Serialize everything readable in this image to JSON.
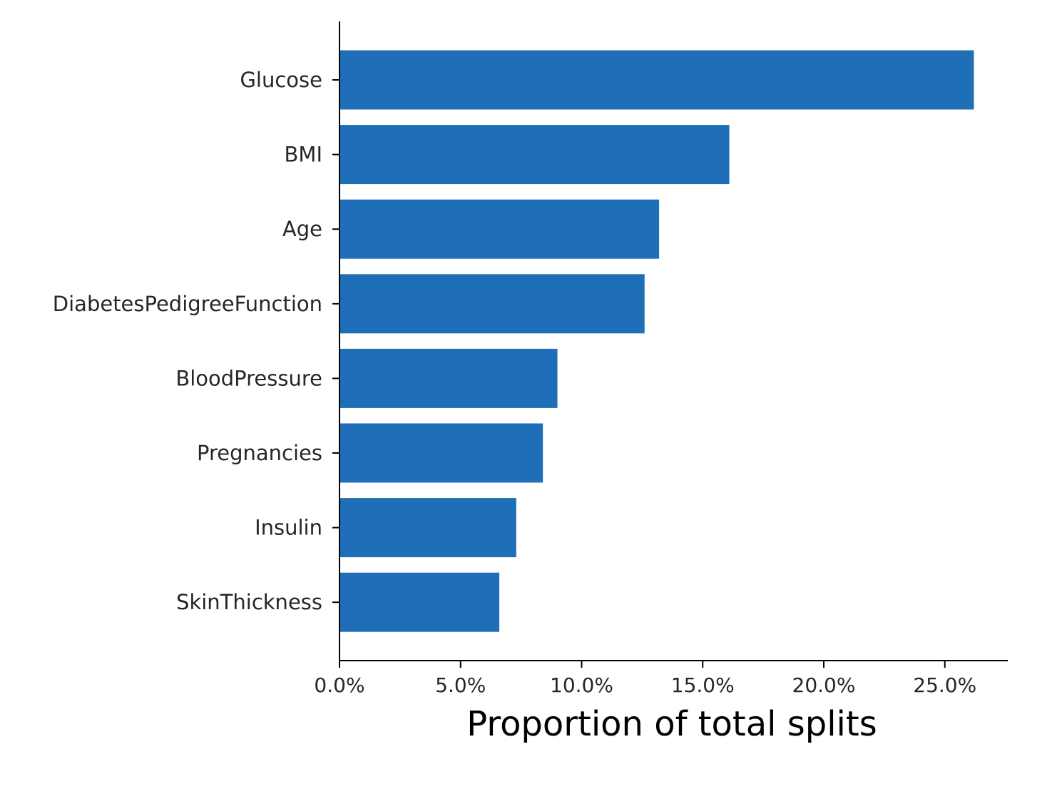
{
  "chart_data": {
    "type": "bar",
    "orientation": "horizontal",
    "categories": [
      "Glucose",
      "BMI",
      "Age",
      "DiabetesPedigreeFunction",
      "BloodPressure",
      "Pregnancies",
      "Insulin",
      "SkinThickness"
    ],
    "values": [
      26.2,
      16.1,
      13.2,
      12.6,
      9.0,
      8.4,
      7.3,
      6.6
    ],
    "xlabel": "Proportion of total splits",
    "ylabel": "",
    "xlim": [
      0,
      27.6
    ],
    "x_ticks": [
      0,
      5,
      10,
      15,
      20,
      25
    ],
    "x_tick_labels": [
      "0.0%",
      "5.0%",
      "10.0%",
      "15.0%",
      "20.0%",
      "25.0%"
    ],
    "bar_color": "#1f6fb8",
    "grid": false
  }
}
